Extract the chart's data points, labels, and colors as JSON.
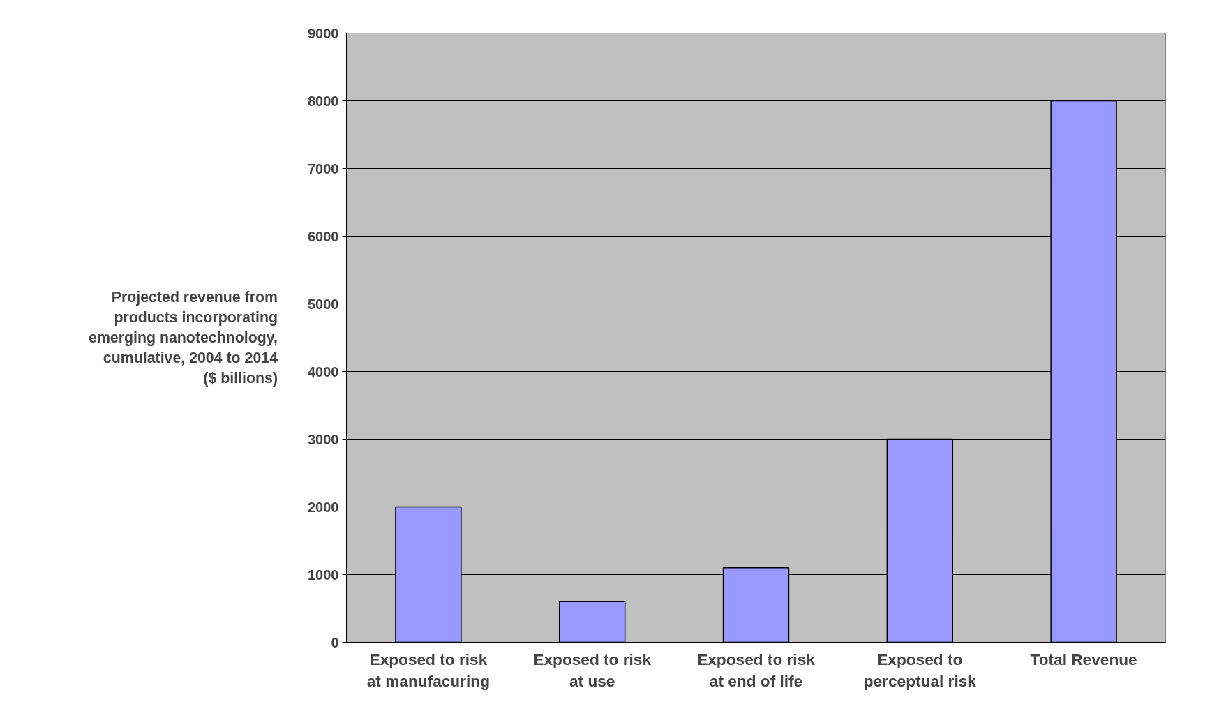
{
  "chart_data": {
    "type": "bar",
    "ylabel": "Projected revenue from products incorporating emerging nanotechnology, cumulative, 2004 to 2014 ($ billions)",
    "categories": [
      "Exposed to risk at manufacuring",
      "Exposed to risk at use",
      "Exposed to risk at end of life",
      "Exposed to perceptual risk",
      "Total Revenue"
    ],
    "values": [
      2000,
      600,
      1100,
      3000,
      8000
    ],
    "color": "#9999ff",
    "ylim": [
      0,
      9000
    ],
    "yticks": [
      0,
      1000,
      2000,
      3000,
      4000,
      5000,
      6000,
      7000,
      8000,
      9000
    ],
    "grid": "y"
  }
}
